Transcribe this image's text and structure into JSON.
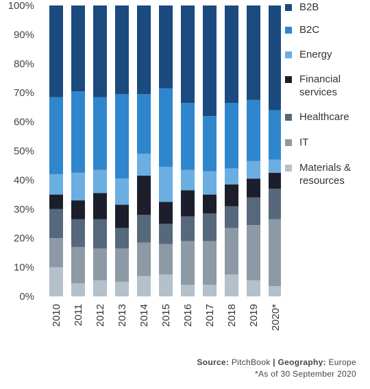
{
  "chart_data": {
    "type": "bar",
    "stacked": true,
    "normalized": true,
    "categories": [
      "2010",
      "2011",
      "2012",
      "2013",
      "2014",
      "2015",
      "2016",
      "2017",
      "2018",
      "2019",
      "2020*"
    ],
    "ylim": [
      0,
      100
    ],
    "y_ticks": [
      "0%",
      "10%",
      "20%",
      "30%",
      "40%",
      "50%",
      "60%",
      "70%",
      "80%",
      "90%",
      "100%"
    ],
    "series": [
      {
        "name": "Materials & resources",
        "color": "#b4c0ca",
        "values": [
          10,
          4.5,
          5.5,
          5,
          7,
          7.5,
          4,
          4,
          7.5,
          5.5,
          3.5
        ]
      },
      {
        "name": "IT",
        "color": "#8d99a5",
        "values": [
          10,
          12.5,
          11,
          11.5,
          11.5,
          10.5,
          15,
          15,
          16,
          19,
          23
        ]
      },
      {
        "name": "Healthcare",
        "color": "#56687b",
        "values": [
          10,
          9.5,
          10,
          7,
          9.5,
          7,
          8.5,
          9.5,
          7.5,
          9.5,
          10.5
        ]
      },
      {
        "name": "Financial services",
        "color": "#1c1f2b",
        "values": [
          5,
          6.5,
          9,
          8,
          13.5,
          7.5,
          9,
          6.5,
          7.5,
          6.5,
          5.5
        ]
      },
      {
        "name": "Energy",
        "color": "#6aaee2",
        "values": [
          7,
          9.5,
          8,
          9,
          7.5,
          12,
          7,
          8,
          5.5,
          6,
          4.5
        ]
      },
      {
        "name": "B2C",
        "color": "#2f86cd",
        "values": [
          26.5,
          28,
          25,
          29,
          20.5,
          27,
          23,
          19,
          22.5,
          21,
          17
        ]
      },
      {
        "name": "B2B",
        "color": "#1b4a7e",
        "values": [
          31.5,
          29.5,
          31.5,
          30.5,
          30.5,
          28.5,
          33.5,
          38,
          33.5,
          32.5,
          36
        ]
      }
    ]
  },
  "legend": {
    "items": [
      {
        "label": "B2B",
        "color": "#1b4a7e"
      },
      {
        "label": "B2C",
        "color": "#2f86cd"
      },
      {
        "label": "Energy",
        "color": "#6aaee2"
      },
      {
        "label": "Financial\nservices",
        "color": "#1c1f2b"
      },
      {
        "label": "Healthcare",
        "color": "#56687b"
      },
      {
        "label": "IT",
        "color": "#8d99a5"
      },
      {
        "label": "Materials &\nresources",
        "color": "#b4c0ca"
      }
    ]
  },
  "source": {
    "source_label": "Source:",
    "source_value": "PitchBook",
    "separator": "|",
    "geography_label": "Geography:",
    "geography_value": "Europe",
    "note": "*As of 30 September 2020"
  }
}
